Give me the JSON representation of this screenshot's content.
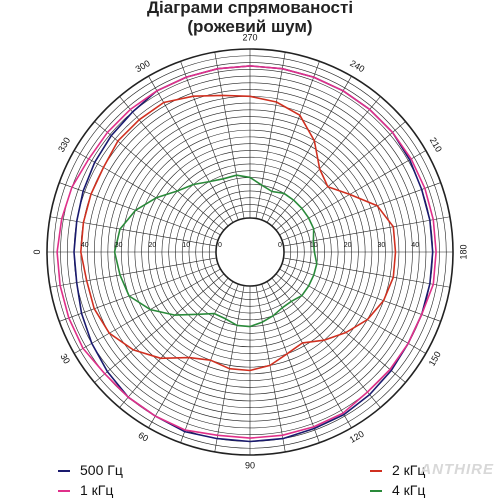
{
  "chart_data": {
    "type": "polar",
    "title": "Діаграми спрямованості",
    "subtitle": "(рожевий шум)",
    "angle_ticks": [
      "0",
      "30",
      "60",
      "90",
      "120",
      "150",
      "180",
      "210",
      "240",
      "270",
      "300",
      "330"
    ],
    "radial_ticks": [
      "0",
      "10",
      "20",
      "30",
      "40"
    ],
    "radial_range": [
      0,
      50
    ],
    "grid": true,
    "legend_placement": "bottom",
    "series": [
      {
        "name": "500 Гц",
        "color": "#1a1a6e",
        "values": [
          [
            0,
            42
          ],
          [
            10,
            42
          ],
          [
            20,
            43
          ],
          [
            30,
            44
          ],
          [
            40,
            45
          ],
          [
            50,
            46
          ],
          [
            60,
            46
          ],
          [
            70,
            46.5
          ],
          [
            80,
            46
          ],
          [
            90,
            46
          ],
          [
            100,
            46
          ],
          [
            110,
            45.5
          ],
          [
            120,
            45.5
          ],
          [
            130,
            45
          ],
          [
            140,
            44.5
          ],
          [
            150,
            44
          ],
          [
            160,
            44
          ],
          [
            170,
            44
          ],
          [
            180,
            44
          ],
          [
            190,
            44
          ],
          [
            200,
            44
          ],
          [
            210,
            44.5
          ],
          [
            220,
            45
          ],
          [
            230,
            45
          ],
          [
            240,
            45
          ],
          [
            250,
            45
          ],
          [
            260,
            45
          ],
          [
            270,
            45
          ],
          [
            280,
            45
          ],
          [
            290,
            45
          ],
          [
            300,
            45
          ],
          [
            310,
            44
          ],
          [
            320,
            43.5
          ],
          [
            330,
            43
          ],
          [
            340,
            42.5
          ],
          [
            350,
            42
          ]
        ]
      },
      {
        "name": "1 кГц",
        "color": "#e0308a",
        "values": [
          [
            0,
            47
          ],
          [
            10,
            47
          ],
          [
            20,
            47
          ],
          [
            30,
            47
          ],
          [
            40,
            46
          ],
          [
            50,
            46
          ],
          [
            60,
            46
          ],
          [
            70,
            46
          ],
          [
            80,
            45
          ],
          [
            90,
            45
          ],
          [
            100,
            45
          ],
          [
            110,
            45
          ],
          [
            120,
            45
          ],
          [
            130,
            44
          ],
          [
            140,
            44
          ],
          [
            150,
            44
          ],
          [
            160,
            44
          ],
          [
            170,
            45
          ],
          [
            180,
            45
          ],
          [
            190,
            45
          ],
          [
            200,
            45
          ],
          [
            210,
            45
          ],
          [
            220,
            45
          ],
          [
            230,
            45
          ],
          [
            240,
            45
          ],
          [
            250,
            45
          ],
          [
            260,
            45
          ],
          [
            270,
            45
          ],
          [
            280,
            45
          ],
          [
            290,
            45
          ],
          [
            300,
            45
          ],
          [
            310,
            45
          ],
          [
            320,
            45
          ],
          [
            330,
            45
          ],
          [
            340,
            46
          ],
          [
            350,
            46.5
          ]
        ]
      },
      {
        "name": "2 кГц",
        "color": "#d03020",
        "values": [
          [
            0,
            40
          ],
          [
            10,
            39
          ],
          [
            20,
            39
          ],
          [
            30,
            38
          ],
          [
            40,
            35
          ],
          [
            50,
            31
          ],
          [
            60,
            26
          ],
          [
            70,
            24
          ],
          [
            80,
            25
          ],
          [
            90,
            25
          ],
          [
            100,
            24
          ],
          [
            110,
            22
          ],
          [
            120,
            21
          ],
          [
            130,
            24
          ],
          [
            140,
            27
          ],
          [
            150,
            30
          ],
          [
            160,
            32
          ],
          [
            170,
            33
          ],
          [
            180,
            33
          ],
          [
            190,
            33
          ],
          [
            200,
            30
          ],
          [
            210,
            24
          ],
          [
            220,
            20
          ],
          [
            230,
            22
          ],
          [
            240,
            28
          ],
          [
            250,
            33
          ],
          [
            260,
            35
          ],
          [
            270,
            36
          ],
          [
            280,
            37
          ],
          [
            290,
            39
          ],
          [
            300,
            41
          ],
          [
            310,
            41
          ],
          [
            320,
            41
          ],
          [
            330,
            40
          ],
          [
            340,
            40
          ],
          [
            350,
            40
          ]
        ]
      },
      {
        "name": "4 кГц",
        "color": "#2a8a3a",
        "values": [
          [
            0,
            30
          ],
          [
            10,
            29
          ],
          [
            20,
            28
          ],
          [
            30,
            24
          ],
          [
            40,
            19
          ],
          [
            50,
            14
          ],
          [
            60,
            11
          ],
          [
            70,
            11
          ],
          [
            80,
            12
          ],
          [
            90,
            12
          ],
          [
            100,
            11
          ],
          [
            110,
            10
          ],
          [
            120,
            9
          ],
          [
            130,
            9
          ],
          [
            140,
            10
          ],
          [
            150,
            10
          ],
          [
            160,
            10
          ],
          [
            170,
            10
          ],
          [
            180,
            9
          ],
          [
            190,
            9
          ],
          [
            200,
            10
          ],
          [
            210,
            10
          ],
          [
            220,
            10
          ],
          [
            230,
            10
          ],
          [
            240,
            10
          ],
          [
            250,
            9
          ],
          [
            260,
            10
          ],
          [
            270,
            12
          ],
          [
            280,
            13
          ],
          [
            290,
            13
          ],
          [
            300,
            14
          ],
          [
            310,
            16
          ],
          [
            320,
            18
          ],
          [
            330,
            22
          ],
          [
            340,
            26
          ],
          [
            350,
            29
          ]
        ]
      }
    ]
  },
  "watermark": "ANTHIRE"
}
